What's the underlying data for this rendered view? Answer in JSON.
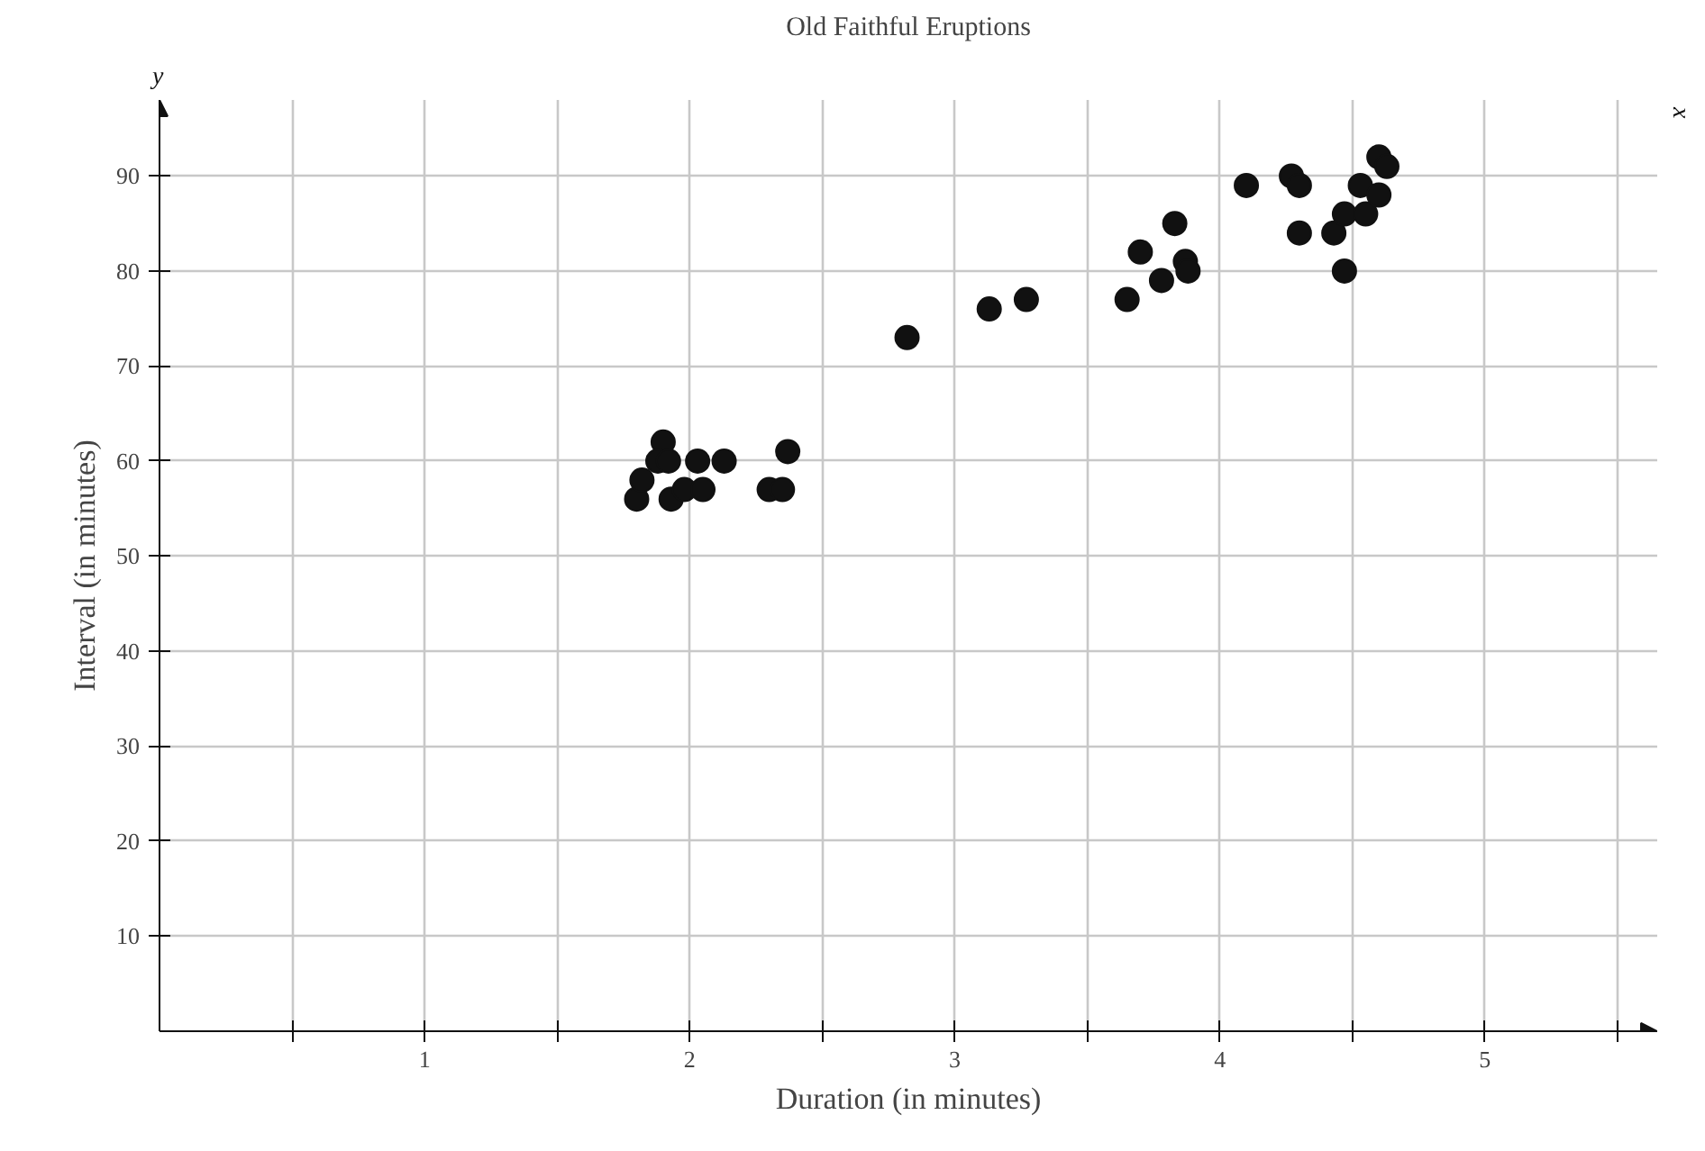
{
  "chart_data": {
    "type": "scatter",
    "title": "Old Faithful Eruptions",
    "xlabel": "Duration (in minutes)",
    "ylabel": "Interval (in minutes)",
    "annotations": [
      "y",
      "x"
    ],
    "x": [
      1.8,
      1.82,
      1.9,
      1.88,
      1.92,
      1.93,
      1.98,
      2.03,
      2.05,
      2.13,
      2.3,
      2.35,
      2.37,
      2.82,
      3.13,
      3.27,
      3.65,
      3.7,
      3.78,
      3.83,
      3.87,
      3.88,
      4.1,
      4.27,
      4.3,
      4.3,
      4.43,
      4.47,
      4.47,
      4.53,
      4.55,
      4.6,
      4.63,
      4.6
    ],
    "series": [
      {
        "color": "#111111",
        "values": [
          56,
          58,
          62,
          60,
          60,
          56,
          57,
          60,
          57,
          60,
          57,
          57,
          61,
          73,
          76,
          77,
          77,
          82,
          79,
          85,
          81,
          80,
          89,
          90,
          89,
          84,
          84,
          86,
          80,
          89,
          86,
          92,
          91,
          88
        ]
      }
    ],
    "marker": "circle",
    "grid": true,
    "xlim": [
      0,
      5.65
    ],
    "ylim": [
      0,
      98
    ],
    "xticks": [
      {
        "value": 0.5,
        "label": null
      },
      1,
      {
        "value": 1.5,
        "label": null
      },
      2,
      {
        "value": 2.5,
        "label": null
      },
      3,
      {
        "value": 3.5,
        "label": null
      },
      4,
      {
        "value": 4.5,
        "label": null
      },
      5,
      {
        "value": 5.5,
        "label": null
      }
    ],
    "yticks": [
      10,
      20,
      30,
      40,
      50,
      60,
      70,
      80,
      90
    ]
  }
}
